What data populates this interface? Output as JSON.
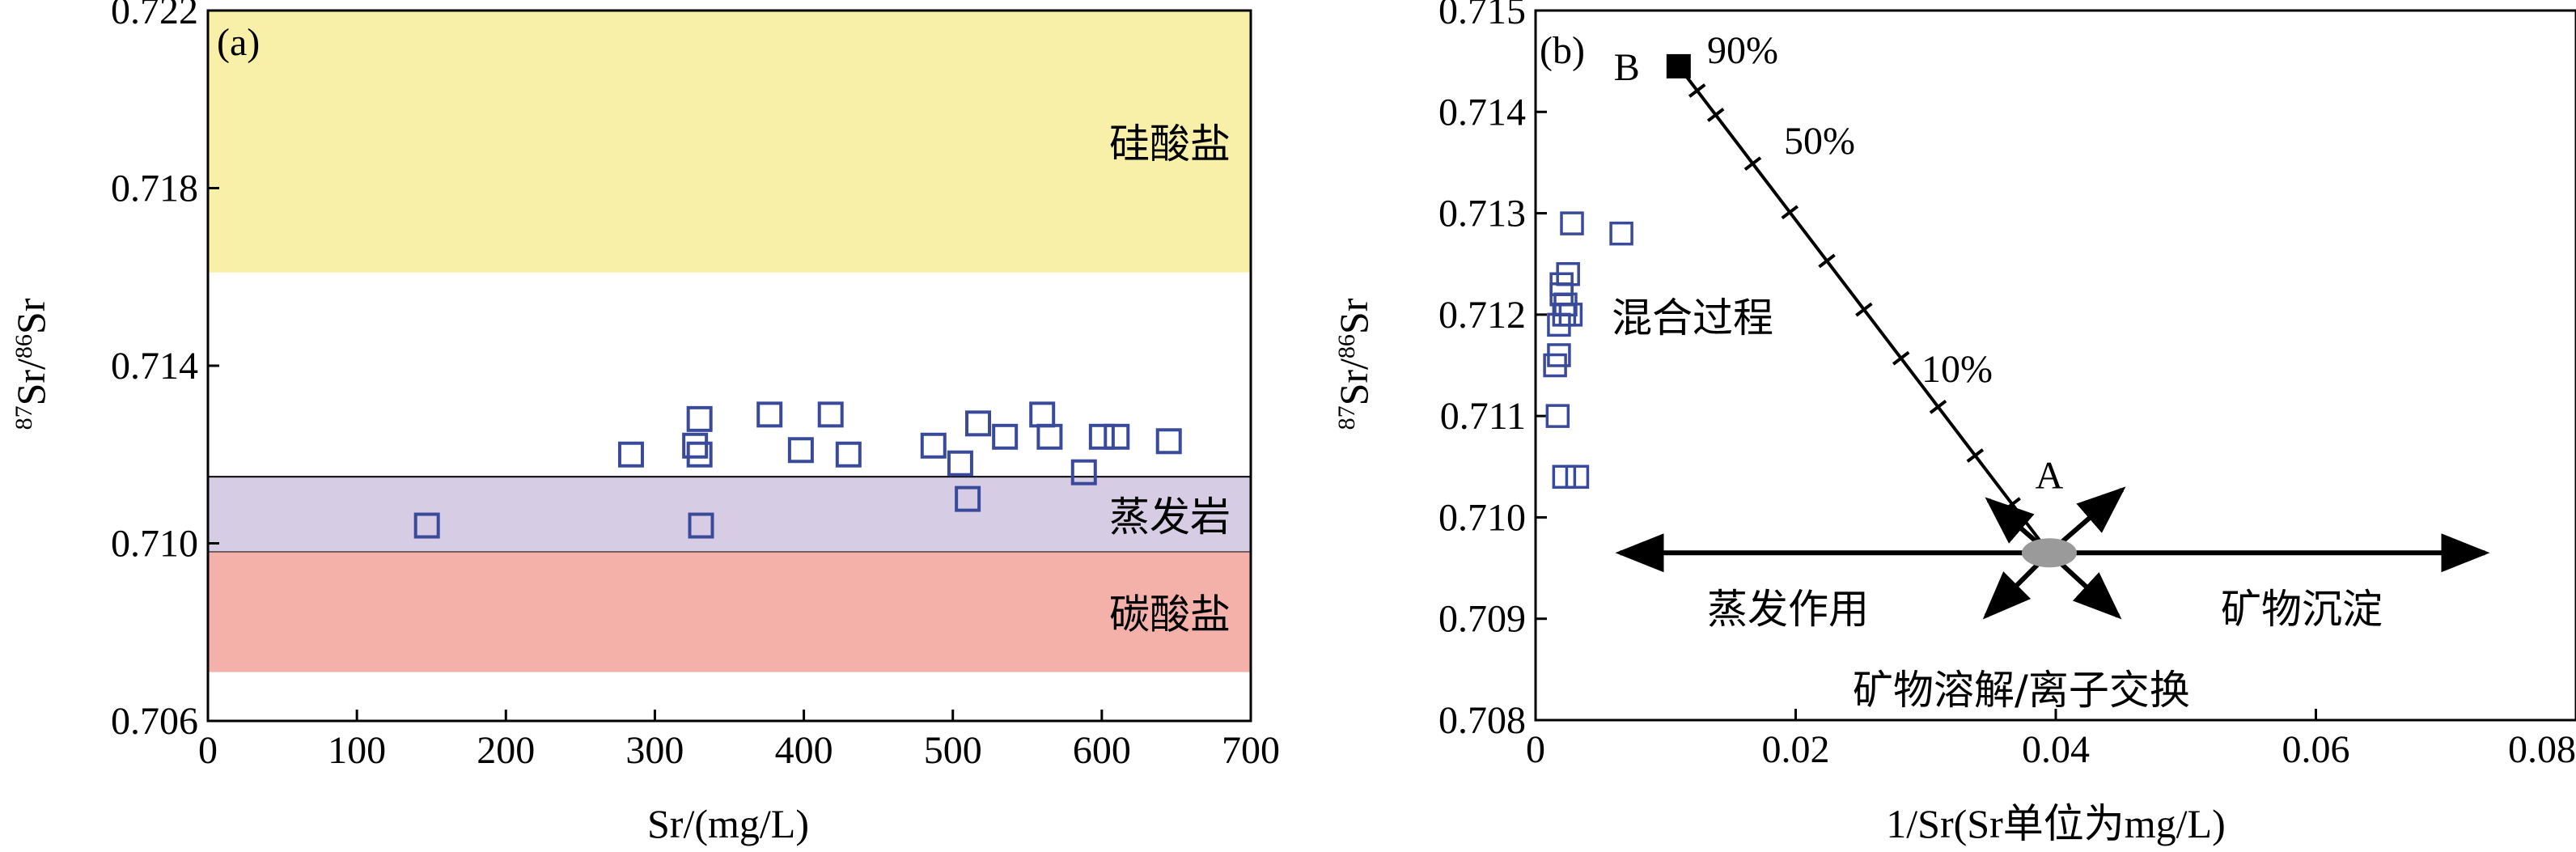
{
  "chart_data": [
    {
      "panel_label": "(a)",
      "type": "scatter",
      "xlabel": "Sr/(mg/L)",
      "ylabel_parts": {
        "iso1": "87",
        "el1": "Sr/",
        "iso2": "86",
        "el2": "Sr"
      },
      "xlim": [
        0,
        700
      ],
      "ylim": [
        0.706,
        0.722
      ],
      "xticks": [
        "0",
        "100",
        "200",
        "300",
        "400",
        "500",
        "600",
        "700"
      ],
      "yticks": [
        "0.706",
        "0.710",
        "0.714",
        "0.718",
        "0.722"
      ],
      "bands": [
        {
          "label": "硅酸盐",
          "y_range": [
            0.7161,
            0.722
          ],
          "color": "#f8f0a8"
        },
        {
          "label": "蒸发岩",
          "y_range": [
            0.7098,
            0.7115
          ],
          "color": "#d6cce4"
        },
        {
          "label": "碳酸盐",
          "y_range": [
            0.7071,
            0.7098
          ],
          "color": "#f4b1aa"
        }
      ],
      "marker_color": "#3a4a9a",
      "points": [
        [
          147,
          0.7104
        ],
        [
          284,
          0.712
        ],
        [
          327,
          0.7122
        ],
        [
          330,
          0.712
        ],
        [
          330,
          0.7128
        ],
        [
          331,
          0.7104
        ],
        [
          377,
          0.7129
        ],
        [
          398,
          0.7121
        ],
        [
          418,
          0.7129
        ],
        [
          430,
          0.712
        ],
        [
          487,
          0.7122
        ],
        [
          505,
          0.7118
        ],
        [
          510,
          0.711
        ],
        [
          517,
          0.7127
        ],
        [
          535,
          0.7124
        ],
        [
          560,
          0.7129
        ],
        [
          565,
          0.7124
        ],
        [
          588,
          0.7116
        ],
        [
          600,
          0.7124
        ],
        [
          610,
          0.7124
        ],
        [
          645,
          0.7123
        ]
      ]
    },
    {
      "panel_label": "(b)",
      "type": "scatter",
      "xlabel": "1/Sr(Sr单位为mg/L)",
      "ylabel_parts": {
        "iso1": "87",
        "el1": "Sr/",
        "iso2": "86",
        "el2": "Sr"
      },
      "xlim": [
        0,
        0.08
      ],
      "ylim": [
        0.708,
        0.715
      ],
      "xticks": [
        "0",
        "0.02",
        "0.04",
        "0.06",
        "0.08"
      ],
      "yticks": [
        "0.708",
        "0.709",
        "0.710",
        "0.711",
        "0.712",
        "0.713",
        "0.714",
        "0.715"
      ],
      "marker_color": "#3a4a9a",
      "points": [
        [
          0.0015,
          0.7115
        ],
        [
          0.0018,
          0.7119
        ],
        [
          0.002,
          0.7122
        ],
        [
          0.002,
          0.7123
        ],
        [
          0.0022,
          0.712
        ],
        [
          0.0023,
          0.7121
        ],
        [
          0.0025,
          0.7124
        ],
        [
          0.0027,
          0.712
        ],
        [
          0.0018,
          0.7116
        ],
        [
          0.0017,
          0.711
        ],
        [
          0.0022,
          0.7104
        ],
        [
          0.0032,
          0.7104
        ],
        [
          0.0028,
          0.7129
        ],
        [
          0.0066,
          0.7128
        ]
      ],
      "end_member_A": {
        "label": "A",
        "x": 0.0395,
        "y": 0.70965
      },
      "end_member_B": {
        "label": "B",
        "x": 0.011,
        "y": 0.71445
      },
      "mixing_ticks": 10,
      "mixing_labels": [
        "90%",
        "50%",
        "10%"
      ],
      "process_labels": {
        "mixing": "混合过程",
        "evaporation": "蒸发作用",
        "precipitation": "矿物沉淀",
        "dissolution": "矿物溶解/离子交换"
      }
    }
  ]
}
